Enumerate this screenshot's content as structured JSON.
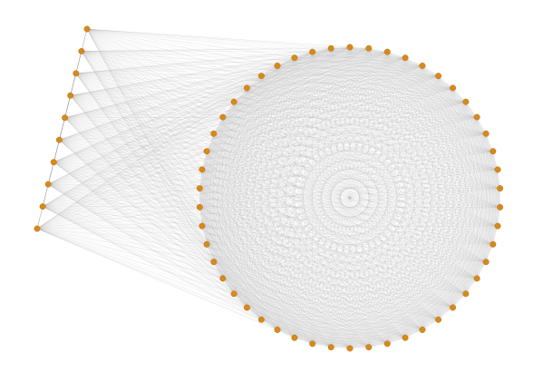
{
  "graph": {
    "kind": "network-graph",
    "layout": "circle-plus-side-column",
    "circle_node_count": 50,
    "side_node_count": 10,
    "edges": "complete-graph-among-all-nodes",
    "colors": {
      "background": "#ffffff",
      "node_fill": "#d9891a",
      "node_stroke": "#b86f0f",
      "edge": "#9a9a9a"
    }
  }
}
